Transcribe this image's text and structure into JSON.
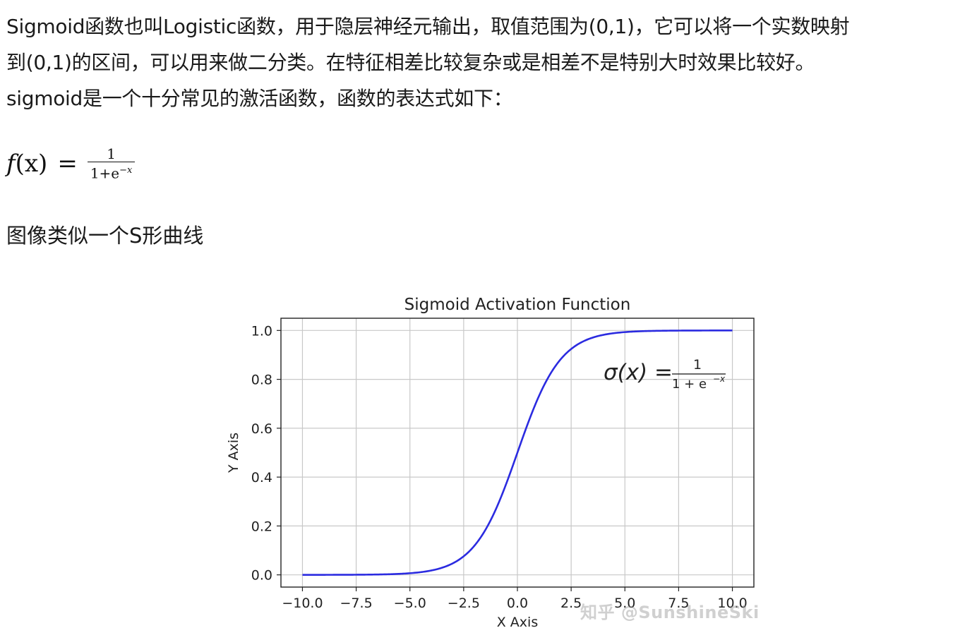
{
  "article": {
    "intro_lines": [
      "Sigmoid函数也叫Logistic函数，用于隐层神经元输出，取值范围为(0,1)，它可以将一个实数映射",
      "到(0,1)的区间，可以用来做二分类。在特征相差比较复杂或是相差不是特别大时效果比较好。",
      "sigmoid是一个十分常见的激活函数，函数的表达式如下："
    ],
    "formula": {
      "lhs_func": "f",
      "lhs_arg": "(x)",
      "equals": "=",
      "numerator": "1",
      "denominator_base": "1+e",
      "denominator_exponent": "−x"
    },
    "caption": "图像类似一个S形曲线"
  },
  "chart_data": {
    "type": "line",
    "title": "Sigmoid Activation Function",
    "xlabel": "X Axis",
    "ylabel": "Y Axis",
    "xlim": [
      -11,
      11
    ],
    "ylim": [
      -0.05,
      1.05
    ],
    "xticks": [
      -10,
      -7.5,
      -5,
      -2.5,
      0,
      2.5,
      5,
      7.5,
      10
    ],
    "xtick_labels": [
      "−10.0",
      "−7.5",
      "−5.0",
      "−2.5",
      "0.0",
      "2.5",
      "5.0",
      "7.5",
      "10.0"
    ],
    "yticks": [
      0,
      0.2,
      0.4,
      0.6,
      0.8,
      1.0
    ],
    "ytick_labels": [
      "0.0",
      "0.2",
      "0.4",
      "0.6",
      "0.8",
      "1.0"
    ],
    "grid": true,
    "series": [
      {
        "function": "1/(1+exp(-x))",
        "x": [
          -10,
          -8,
          -6,
          -5,
          -4,
          -3,
          -2.5,
          -2,
          -1.5,
          -1,
          -0.5,
          0,
          0.5,
          1,
          1.5,
          2,
          2.5,
          3,
          4,
          5,
          6,
          8,
          10
        ],
        "values": [
          4.54e-05,
          0.000335,
          0.00247,
          0.00669,
          0.018,
          0.0474,
          0.0759,
          0.119,
          0.182,
          0.269,
          0.378,
          0.5,
          0.622,
          0.731,
          0.818,
          0.881,
          0.924,
          0.953,
          0.982,
          0.9933,
          0.9975,
          0.99966,
          0.99995
        ],
        "color": "#2b2be0"
      }
    ],
    "annotation": {
      "lhs": "σ(x) =",
      "numerator": "1",
      "denominator": "1 + e",
      "exponent": "−x"
    }
  },
  "watermark": "知乎 @SunshineSki"
}
